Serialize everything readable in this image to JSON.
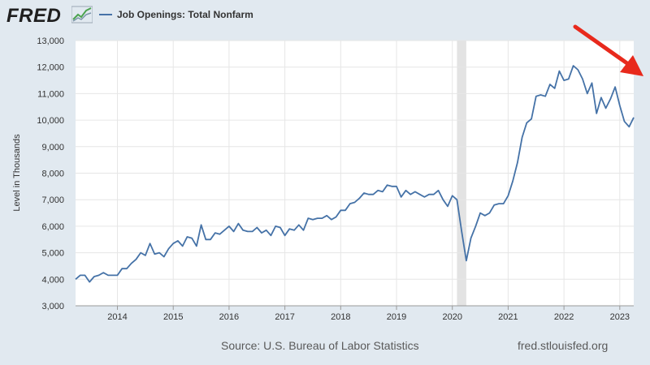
{
  "header": {
    "logo": "FRED",
    "legend_label": "Job Openings: Total Nonfarm",
    "series_color": "#4572a7"
  },
  "footer": {
    "source": "Source: U.S. Bureau of Labor Statistics",
    "site": "fred.stlouisfed.org"
  },
  "annotation": {
    "type": "arrow",
    "color": "#e8291c",
    "direction": "down-right"
  },
  "chart_data": {
    "type": "line",
    "title": "",
    "xlabel": "",
    "ylabel": "Level in Thousands",
    "xlim": [
      2013.25,
      2023.25
    ],
    "ylim": [
      3000,
      13000
    ],
    "yticks": [
      3000,
      4000,
      5000,
      6000,
      7000,
      8000,
      9000,
      10000,
      11000,
      12000,
      13000
    ],
    "ytick_labels": [
      "3,000",
      "4,000",
      "5,000",
      "6,000",
      "7,000",
      "8,000",
      "9,000",
      "10,000",
      "11,000",
      "12,000",
      "13,000"
    ],
    "xticks": [
      2014,
      2015,
      2016,
      2017,
      2018,
      2019,
      2020,
      2021,
      2022,
      2023
    ],
    "xtick_labels": [
      "2014",
      "2015",
      "2016",
      "2017",
      "2018",
      "2019",
      "2020",
      "2021",
      "2022",
      "2023"
    ],
    "recession": {
      "start": 2020.083,
      "end": 2020.25
    },
    "grid": true,
    "series": [
      {
        "name": "Job Openings: Total Nonfarm",
        "x": [
          2013.25,
          2013.333,
          2013.417,
          2013.5,
          2013.583,
          2013.667,
          2013.75,
          2013.833,
          2013.917,
          2014.0,
          2014.083,
          2014.167,
          2014.25,
          2014.333,
          2014.417,
          2014.5,
          2014.583,
          2014.667,
          2014.75,
          2014.833,
          2014.917,
          2015.0,
          2015.083,
          2015.167,
          2015.25,
          2015.333,
          2015.417,
          2015.5,
          2015.583,
          2015.667,
          2015.75,
          2015.833,
          2015.917,
          2016.0,
          2016.083,
          2016.167,
          2016.25,
          2016.333,
          2016.417,
          2016.5,
          2016.583,
          2016.667,
          2016.75,
          2016.833,
          2016.917,
          2017.0,
          2017.083,
          2017.167,
          2017.25,
          2017.333,
          2017.417,
          2017.5,
          2017.583,
          2017.667,
          2017.75,
          2017.833,
          2017.917,
          2018.0,
          2018.083,
          2018.167,
          2018.25,
          2018.333,
          2018.417,
          2018.5,
          2018.583,
          2018.667,
          2018.75,
          2018.833,
          2018.917,
          2019.0,
          2019.083,
          2019.167,
          2019.25,
          2019.333,
          2019.417,
          2019.5,
          2019.583,
          2019.667,
          2019.75,
          2019.833,
          2019.917,
          2020.0,
          2020.083,
          2020.167,
          2020.25,
          2020.333,
          2020.417,
          2020.5,
          2020.583,
          2020.667,
          2020.75,
          2020.833,
          2020.917,
          2021.0,
          2021.083,
          2021.167,
          2021.25,
          2021.333,
          2021.417,
          2021.5,
          2021.583,
          2021.667,
          2021.75,
          2021.833,
          2021.917,
          2022.0,
          2022.083,
          2022.167,
          2022.25,
          2022.333,
          2022.417,
          2022.5,
          2022.583,
          2022.667,
          2022.75,
          2022.833,
          2022.917,
          2023.0,
          2023.083,
          2023.167,
          2023.25
        ],
        "y": [
          4000,
          4150,
          4150,
          3900,
          4100,
          4150,
          4250,
          4150,
          4150,
          4150,
          4400,
          4400,
          4600,
          4750,
          5000,
          4900,
          5350,
          4950,
          5000,
          4850,
          5150,
          5350,
          5450,
          5250,
          5600,
          5550,
          5250,
          6050,
          5500,
          5500,
          5750,
          5700,
          5850,
          6000,
          5800,
          6100,
          5850,
          5800,
          5800,
          5950,
          5750,
          5850,
          5650,
          6000,
          5950,
          5650,
          5900,
          5850,
          6050,
          5850,
          6300,
          6250,
          6300,
          6300,
          6400,
          6250,
          6350,
          6600,
          6600,
          6850,
          6900,
          7050,
          7250,
          7200,
          7200,
          7350,
          7300,
          7550,
          7500,
          7500,
          7100,
          7350,
          7200,
          7300,
          7200,
          7100,
          7200,
          7200,
          7350,
          7000,
          6750,
          7150,
          7000,
          5800,
          4700,
          5550,
          6000,
          6500,
          6400,
          6500,
          6800,
          6850,
          6850,
          7150,
          7700,
          8400,
          9350,
          9900,
          10050,
          10900,
          10950,
          10900,
          11350,
          11200,
          11850,
          11500,
          11550,
          12050,
          11900,
          11550,
          11000,
          11400,
          10250,
          10850,
          10450,
          10800,
          11250,
          10550,
          9950,
          9750,
          10100
        ]
      }
    ]
  }
}
